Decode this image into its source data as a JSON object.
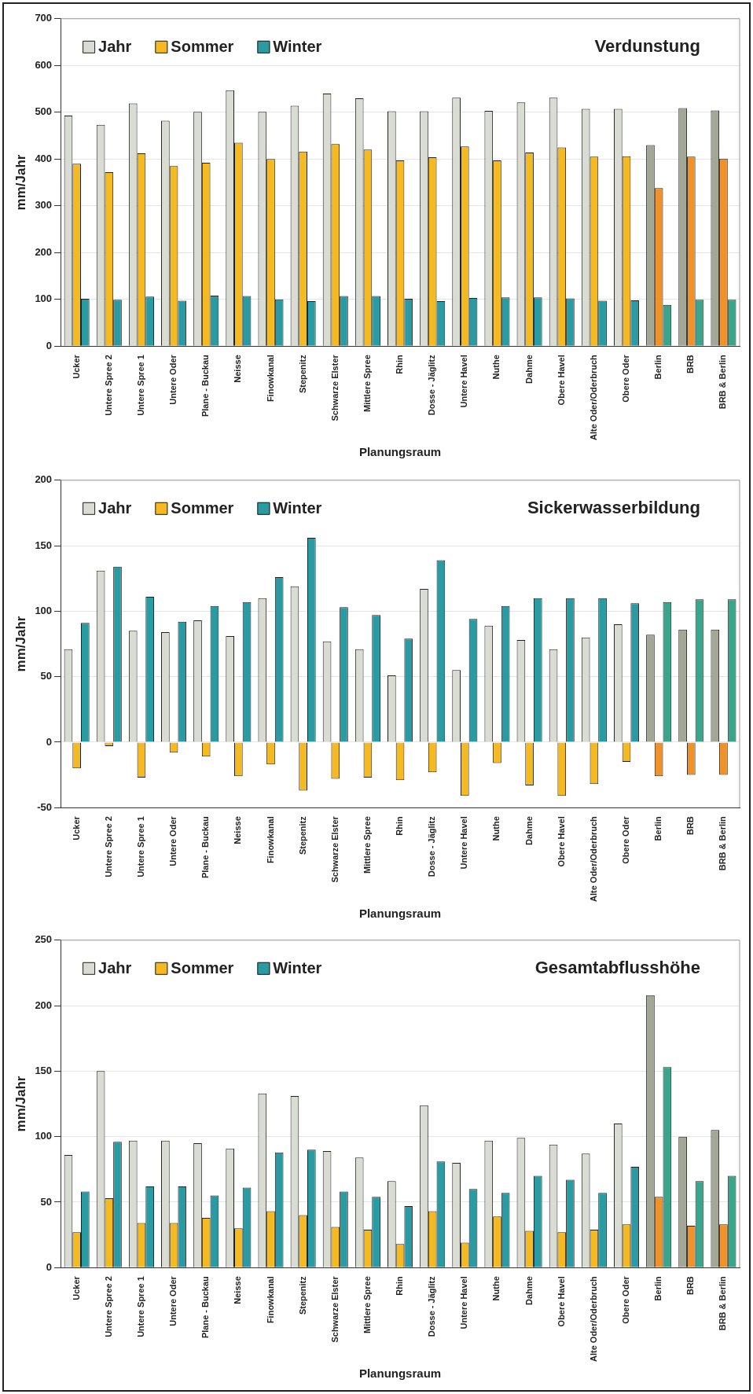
{
  "chart_data": [
    {
      "type": "bar",
      "title": "Verdunstung",
      "xlabel": "Planungsraum",
      "ylabel": "mm/Jahr",
      "legend": "top left",
      "grid": "y",
      "ylim": [
        0,
        700
      ],
      "yticks": [
        0,
        100,
        200,
        300,
        400,
        500,
        600,
        700
      ],
      "categories": [
        "Ucker",
        "Untere Spree 2",
        "Untere Spree 1",
        "Untere Oder",
        "Plane - Buckau",
        "Neisse",
        "Finowkanal",
        "Stepenitz",
        "Schwarze Elster",
        "Mittlere Spree",
        "Rhin",
        "Dosse - Jäglitz",
        "Untere Havel",
        "Nuthe",
        "Dahme",
        "Obere Havel",
        "Alte Oder/Oderbruch",
        "Obere Oder",
        "Berlin",
        "BRB",
        "BRB & Berlin"
      ],
      "series": [
        {
          "name": "Jahr",
          "colors": [
            "#d9dcd2",
            "#d9dcd2",
            "#d9dcd2",
            "#d9dcd2",
            "#d9dcd2",
            "#d9dcd2",
            "#d9dcd2",
            "#d9dcd2",
            "#d9dcd2",
            "#d9dcd2",
            "#d9dcd2",
            "#d9dcd2",
            "#d9dcd2",
            "#d9dcd2",
            "#d9dcd2",
            "#d9dcd2",
            "#d9dcd2",
            "#d9dcd2",
            "#a3a795",
            "#a3a795",
            "#a3a795"
          ],
          "values": [
            493,
            473,
            519,
            482,
            501,
            547,
            501,
            514,
            540,
            530,
            502,
            502,
            531,
            503,
            521,
            531,
            507,
            507,
            430,
            509,
            504
          ]
        },
        {
          "name": "Sommer",
          "colors": [
            "#f5b922",
            "#f5b922",
            "#f5b922",
            "#f5b922",
            "#f5b922",
            "#f5b922",
            "#f5b922",
            "#f5b922",
            "#f5b922",
            "#f5b922",
            "#f5b922",
            "#f5b922",
            "#f5b922",
            "#f5b922",
            "#f5b922",
            "#f5b922",
            "#f5b922",
            "#f5b922",
            "#f0922a",
            "#f0922a",
            "#f0922a"
          ],
          "values": [
            390,
            372,
            412,
            385,
            392,
            435,
            400,
            416,
            432,
            420,
            397,
            404,
            427,
            397,
            414,
            425,
            405,
            406,
            338,
            405,
            401
          ]
        },
        {
          "name": "Winter",
          "colors": [
            "#2a9ba3",
            "#2a9ba3",
            "#2a9ba3",
            "#2a9ba3",
            "#2a9ba3",
            "#2a9ba3",
            "#2a9ba3",
            "#2a9ba3",
            "#2a9ba3",
            "#2a9ba3",
            "#2a9ba3",
            "#2a9ba3",
            "#2a9ba3",
            "#2a9ba3",
            "#2a9ba3",
            "#2a9ba3",
            "#2a9ba3",
            "#2a9ba3",
            "#3aa58a",
            "#3aa58a",
            "#3aa58a"
          ],
          "values": [
            101,
            99,
            106,
            97,
            108,
            107,
            100,
            96,
            107,
            107,
            101,
            96,
            103,
            104,
            104,
            102,
            97,
            98,
            88,
            99,
            99
          ]
        }
      ]
    },
    {
      "type": "bar",
      "title": "Sickerwasserbildung",
      "xlabel": "Planungsraum",
      "ylabel": "mm/Jahr",
      "legend": "top left",
      "grid": "y",
      "ylim": [
        -50,
        200
      ],
      "yticks": [
        -50,
        0,
        50,
        100,
        150,
        200
      ],
      "categories": [
        "Ucker",
        "Untere Spree 2",
        "Untere Spree 1",
        "Untere Oder",
        "Plane - Buckau",
        "Neisse",
        "Finowkanal",
        "Stepenitz",
        "Schwarze Elster",
        "Mittlere Spree",
        "Rhin",
        "Dosse - Jäglitz",
        "Untere Havel",
        "Nuthe",
        "Dahme",
        "Obere Havel",
        "Alte Oder/Oderbruch",
        "Obere Oder",
        "Berlin",
        "BRB",
        "BRB & Berlin"
      ],
      "series": [
        {
          "name": "Jahr",
          "colors": [
            "#d9dcd2",
            "#d9dcd2",
            "#d9dcd2",
            "#d9dcd2",
            "#d9dcd2",
            "#d9dcd2",
            "#d9dcd2",
            "#d9dcd2",
            "#d9dcd2",
            "#d9dcd2",
            "#d9dcd2",
            "#d9dcd2",
            "#d9dcd2",
            "#d9dcd2",
            "#d9dcd2",
            "#d9dcd2",
            "#d9dcd2",
            "#d9dcd2",
            "#a3a795",
            "#a3a795",
            "#a3a795"
          ],
          "values": [
            71,
            131,
            85,
            84,
            93,
            81,
            110,
            119,
            77,
            71,
            51,
            117,
            55,
            89,
            78,
            71,
            80,
            90,
            82,
            86,
            86
          ]
        },
        {
          "name": "Sommer",
          "colors": [
            "#f5b922",
            "#f5b922",
            "#f5b922",
            "#f5b922",
            "#f5b922",
            "#f5b922",
            "#f5b922",
            "#f5b922",
            "#f5b922",
            "#f5b922",
            "#f5b922",
            "#f5b922",
            "#f5b922",
            "#f5b922",
            "#f5b922",
            "#f5b922",
            "#f5b922",
            "#f5b922",
            "#f0922a",
            "#f0922a",
            "#f0922a"
          ],
          "values": [
            -20,
            -3,
            -27,
            -8,
            -11,
            -26,
            -17,
            -37,
            -28,
            -27,
            -29,
            -23,
            -41,
            -16,
            -33,
            -41,
            -32,
            -15,
            -26,
            -25,
            -25
          ]
        },
        {
          "name": "Winter",
          "colors": [
            "#2a9ba3",
            "#2a9ba3",
            "#2a9ba3",
            "#2a9ba3",
            "#2a9ba3",
            "#2a9ba3",
            "#2a9ba3",
            "#2a9ba3",
            "#2a9ba3",
            "#2a9ba3",
            "#2a9ba3",
            "#2a9ba3",
            "#2a9ba3",
            "#2a9ba3",
            "#2a9ba3",
            "#2a9ba3",
            "#2a9ba3",
            "#2a9ba3",
            "#3aa58a",
            "#3aa58a",
            "#3aa58a"
          ],
          "values": [
            91,
            134,
            111,
            92,
            104,
            107,
            126,
            156,
            103,
            97,
            79,
            139,
            94,
            104,
            110,
            110,
            110,
            106,
            107,
            109,
            109
          ]
        }
      ]
    },
    {
      "type": "bar",
      "title": "Gesamtabflusshöhe",
      "xlabel": "Planungsraum",
      "ylabel": "mm/Jahr",
      "legend": "top left",
      "grid": "y",
      "ylim": [
        0,
        250
      ],
      "yticks": [
        0,
        50,
        100,
        150,
        200,
        250
      ],
      "categories": [
        "Ucker",
        "Untere Spree 2",
        "Untere Spree 1",
        "Untere Oder",
        "Plane - Buckau",
        "Neisse",
        "Finowkanal",
        "Stepenitz",
        "Schwarze Elster",
        "Mittlere Spree",
        "Rhin",
        "Dosse - Jäglitz",
        "Untere Havel",
        "Nuthe",
        "Dahme",
        "Obere Havel",
        "Alte Oder/Oderbruch",
        "Obere Oder",
        "Berlin",
        "BRB",
        "BRB & Berlin"
      ],
      "series": [
        {
          "name": "Jahr",
          "colors": [
            "#d9dcd2",
            "#d9dcd2",
            "#d9dcd2",
            "#d9dcd2",
            "#d9dcd2",
            "#d9dcd2",
            "#d9dcd2",
            "#d9dcd2",
            "#d9dcd2",
            "#d9dcd2",
            "#d9dcd2",
            "#d9dcd2",
            "#d9dcd2",
            "#d9dcd2",
            "#d9dcd2",
            "#d9dcd2",
            "#d9dcd2",
            "#d9dcd2",
            "#a3a795",
            "#a3a795",
            "#a3a795"
          ],
          "values": [
            86,
            150,
            97,
            97,
            95,
            91,
            133,
            131,
            89,
            84,
            66,
            124,
            80,
            97,
            99,
            94,
            87,
            110,
            208,
            100,
            105
          ]
        },
        {
          "name": "Sommer",
          "colors": [
            "#f5b922",
            "#f5b922",
            "#f5b922",
            "#f5b922",
            "#f5b922",
            "#f5b922",
            "#f5b922",
            "#f5b922",
            "#f5b922",
            "#f5b922",
            "#f5b922",
            "#f5b922",
            "#f5b922",
            "#f5b922",
            "#f5b922",
            "#f5b922",
            "#f5b922",
            "#f5b922",
            "#f0922a",
            "#f0922a",
            "#f0922a"
          ],
          "values": [
            27,
            53,
            34,
            34,
            38,
            30,
            43,
            40,
            31,
            29,
            18,
            43,
            19,
            39,
            28,
            27,
            29,
            33,
            54,
            32,
            33
          ]
        },
        {
          "name": "Winter",
          "colors": [
            "#2a9ba3",
            "#2a9ba3",
            "#2a9ba3",
            "#2a9ba3",
            "#2a9ba3",
            "#2a9ba3",
            "#2a9ba3",
            "#2a9ba3",
            "#2a9ba3",
            "#2a9ba3",
            "#2a9ba3",
            "#2a9ba3",
            "#2a9ba3",
            "#2a9ba3",
            "#2a9ba3",
            "#2a9ba3",
            "#2a9ba3",
            "#2a9ba3",
            "#3aa58a",
            "#3aa58a",
            "#3aa58a"
          ],
          "values": [
            58,
            96,
            62,
            62,
            55,
            61,
            88,
            90,
            58,
            54,
            47,
            81,
            60,
            57,
            70,
            67,
            57,
            77,
            153,
            66,
            70
          ]
        }
      ]
    }
  ]
}
